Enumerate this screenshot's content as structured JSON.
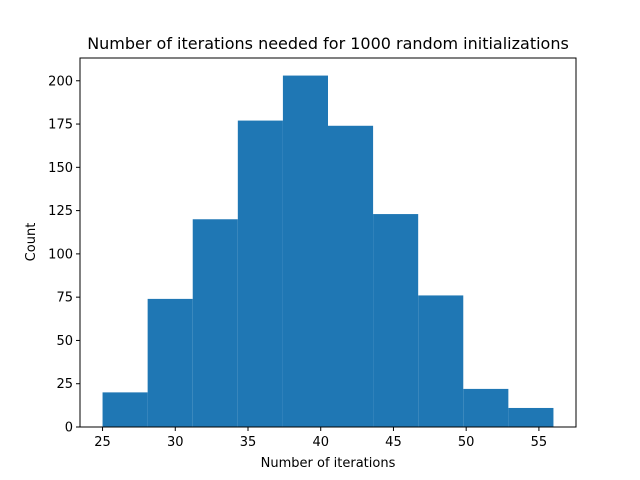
{
  "chart_data": {
    "type": "bar",
    "title": "Number of iterations needed for 1000 random initializations",
    "xlabel": "Number of iterations",
    "ylabel": "Count",
    "bin_edges": [
      25,
      28.1,
      31.2,
      34.3,
      37.4,
      40.5,
      43.6,
      46.7,
      49.8,
      52.9,
      56
    ],
    "values": [
      20,
      74,
      120,
      177,
      203,
      174,
      123,
      76,
      22,
      11
    ],
    "xlim": [
      23.45,
      57.55
    ],
    "ylim": [
      0,
      213.15
    ],
    "xticks": [
      25,
      30,
      35,
      40,
      45,
      50,
      55
    ],
    "yticks": [
      0,
      25,
      50,
      75,
      100,
      125,
      150,
      175,
      200
    ],
    "bar_color": "#1f77b4",
    "grid": false,
    "legend": "none"
  }
}
